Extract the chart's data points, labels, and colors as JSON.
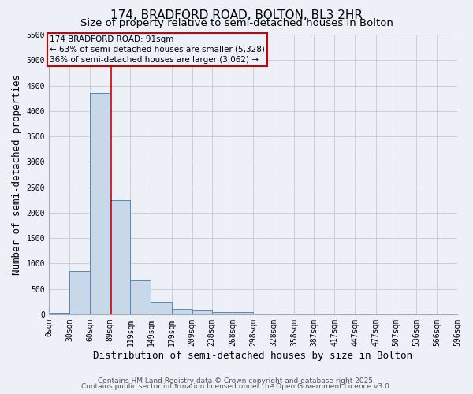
{
  "title_line1": "174, BRADFORD ROAD, BOLTON, BL3 2HR",
  "title_line2": "Size of property relative to semi-detached houses in Bolton",
  "xlabel": "Distribution of semi-detached houses by size in Bolton",
  "ylabel": "Number of semi-detached properties",
  "bin_labels": [
    "0sqm",
    "30sqm",
    "60sqm",
    "89sqm",
    "119sqm",
    "149sqm",
    "179sqm",
    "209sqm",
    "238sqm",
    "268sqm",
    "298sqm",
    "328sqm",
    "358sqm",
    "387sqm",
    "417sqm",
    "447sqm",
    "477sqm",
    "507sqm",
    "536sqm",
    "566sqm",
    "596sqm"
  ],
  "bin_edges": [
    0,
    30,
    60,
    89,
    119,
    149,
    179,
    209,
    238,
    268,
    298,
    328,
    358,
    387,
    417,
    447,
    477,
    507,
    536,
    566,
    596
  ],
  "bar_heights": [
    30,
    850,
    4350,
    2250,
    680,
    250,
    110,
    70,
    50,
    50,
    0,
    0,
    0,
    0,
    0,
    0,
    0,
    0,
    0,
    0
  ],
  "bar_color": "#c8d8e8",
  "bar_edge_color": "#5588bb",
  "grid_color": "#ccccdd",
  "background_color": "#eef0f8",
  "property_size": 91,
  "red_line_color": "#cc0000",
  "annotation_text_line1": "174 BRADFORD ROAD: 91sqm",
  "annotation_text_line2": "← 63% of semi-detached houses are smaller (5,328)",
  "annotation_text_line3": "36% of semi-detached houses are larger (3,062) →",
  "ylim": [
    0,
    5500
  ],
  "yticks": [
    0,
    500,
    1000,
    1500,
    2000,
    2500,
    3000,
    3500,
    4000,
    4500,
    5000,
    5500
  ],
  "footer_line1": "Contains HM Land Registry data © Crown copyright and database right 2025.",
  "footer_line2": "Contains public sector information licensed under the Open Government Licence v3.0.",
  "title_fontsize": 11,
  "subtitle_fontsize": 9.5,
  "axis_label_fontsize": 9,
  "tick_fontsize": 7,
  "annotation_fontsize": 7.5,
  "footer_fontsize": 6.5
}
